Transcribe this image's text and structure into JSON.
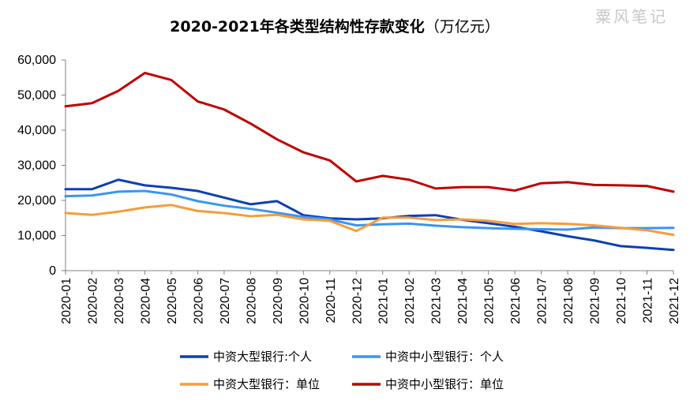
{
  "chart_data": {
    "type": "line",
    "title": "2020-2021年各类型结构性存款变化",
    "title_unit": "（万亿元）",
    "watermark": "粟风笔记",
    "x": [
      "2020-01",
      "2020-02",
      "2020-03",
      "2020-04",
      "2020-05",
      "2020-06",
      "2020-07",
      "2020-08",
      "2020-09",
      "2020-10",
      "2020-11",
      "2020-12",
      "2021-01",
      "2021-02",
      "2021-03",
      "2021-04",
      "2021-05",
      "2021-06",
      "2021-07",
      "2021-08",
      "2021-09",
      "2021-10",
      "2021-11",
      "2021-12"
    ],
    "ylim": [
      0,
      60000
    ],
    "yticks": [
      0,
      10000,
      20000,
      30000,
      40000,
      50000,
      60000
    ],
    "ytick_labels": [
      "0",
      "10,000",
      "20,000",
      "30,000",
      "40,000",
      "50,000",
      "60,000"
    ],
    "grid": false,
    "legend_position": "bottom",
    "series": [
      {
        "name": "中资大型银行:个人",
        "color": "#0d3fb5",
        "values": [
          23200,
          23200,
          25900,
          24300,
          23600,
          22700,
          20800,
          18900,
          19800,
          15800,
          14900,
          14600,
          14900,
          15600,
          15800,
          14500,
          13500,
          12500,
          11200,
          9800,
          8600,
          7000,
          6500,
          5900
        ]
      },
      {
        "name": "中资中小型银行：个人",
        "color": "#3a95f0",
        "values": [
          21200,
          21400,
          22500,
          22700,
          21700,
          19800,
          18500,
          17600,
          16500,
          15300,
          14600,
          12900,
          13200,
          13400,
          12800,
          12400,
          12100,
          11900,
          11800,
          11700,
          12300,
          12100,
          12100,
          12200
        ]
      },
      {
        "name": "中资大型银行：单位",
        "color": "#f79c3a",
        "values": [
          16400,
          15900,
          16800,
          18000,
          18700,
          17000,
          16400,
          15500,
          15900,
          14600,
          14200,
          11300,
          15100,
          15100,
          14400,
          14600,
          14200,
          13300,
          13500,
          13300,
          12900,
          12200,
          11500,
          10200
        ]
      },
      {
        "name": "中资中小型银行：单位",
        "color": "#c00000",
        "values": [
          46800,
          47700,
          51200,
          56300,
          54300,
          48200,
          45900,
          41900,
          37400,
          33700,
          31400,
          25400,
          27000,
          25900,
          23400,
          23800,
          23800,
          22800,
          24900,
          25200,
          24400,
          24300,
          24100,
          22500
        ]
      }
    ]
  }
}
